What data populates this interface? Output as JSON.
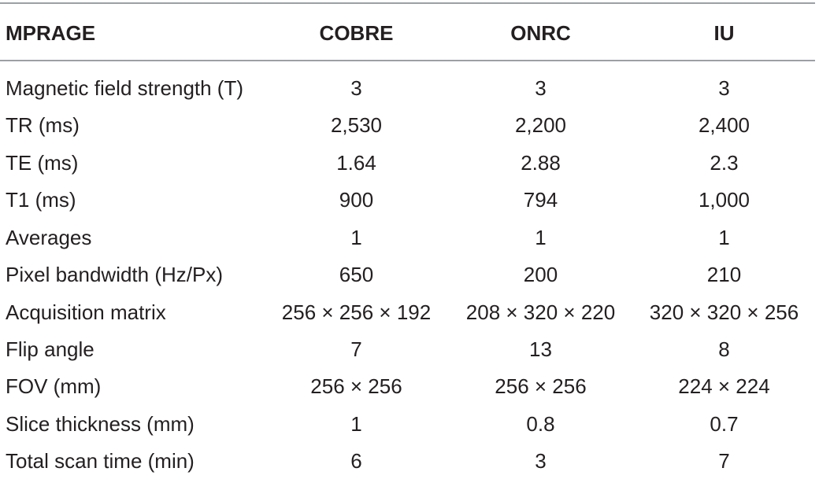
{
  "table": {
    "columns": [
      "MPRAGE",
      "COBRE",
      "ONRC",
      "IU"
    ],
    "rows": [
      [
        "Magnetic field strength (T)",
        "3",
        "3",
        "3"
      ],
      [
        "TR (ms)",
        "2,530",
        "2,200",
        "2,400"
      ],
      [
        "TE (ms)",
        "1.64",
        "2.88",
        "2.3"
      ],
      [
        "T1 (ms)",
        "900",
        "794",
        "1,000"
      ],
      [
        "Averages",
        "1",
        "1",
        "1"
      ],
      [
        "Pixel bandwidth (Hz/Px)",
        "650",
        "200",
        "210"
      ],
      [
        "Acquisition matrix",
        "256 × 256 × 192",
        "208 × 320 × 220",
        "320 × 320 × 256"
      ],
      [
        "Flip angle",
        "7",
        "13",
        "8"
      ],
      [
        "FOV (mm)",
        "256 × 256",
        "256 × 256",
        "224 × 224"
      ],
      [
        "Slice thickness (mm)",
        "1",
        "0.8",
        "0.7"
      ],
      [
        "Total scan time (min)",
        "6",
        "3",
        "7"
      ]
    ]
  }
}
